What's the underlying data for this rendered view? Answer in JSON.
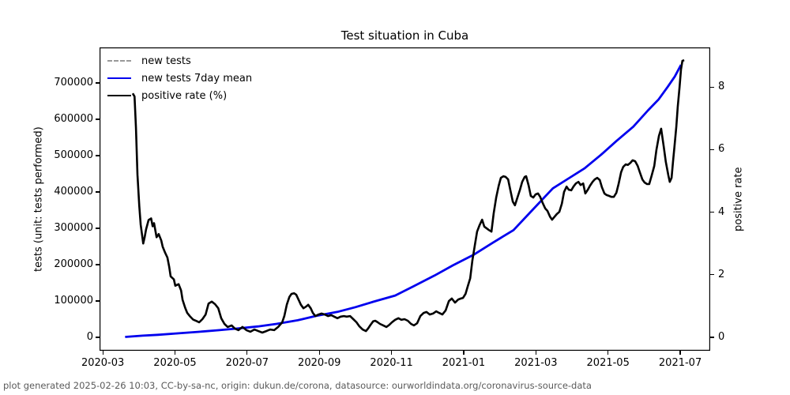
{
  "chart_data": {
    "type": "line",
    "title": "Test situation in Cuba",
    "footer": "plot generated 2025-02-26 10:03, CC-by-sa-nc, origin: dukun.de/corona, datasource: ourworldindata.org/coronavirus-source-data",
    "legend_position": "upper-left",
    "grid": false,
    "axes": {
      "x": {
        "unit": "months since 2020-03",
        "min": -0.09,
        "max": 16.83,
        "ticks": [
          {
            "t": 0,
            "label": "2020-03"
          },
          {
            "t": 2,
            "label": "2020-05"
          },
          {
            "t": 4,
            "label": "2020-07"
          },
          {
            "t": 6,
            "label": "2020-09"
          },
          {
            "t": 8,
            "label": "2020-11"
          },
          {
            "t": 10,
            "label": "2021-01"
          },
          {
            "t": 12,
            "label": "2021-03"
          },
          {
            "t": 14,
            "label": "2021-05"
          },
          {
            "t": 16,
            "label": "2021-07"
          }
        ]
      },
      "y_left": {
        "label": "tests (unit: tests performed)",
        "min": -37000,
        "max": 798000,
        "ticks": [
          0,
          100000,
          200000,
          300000,
          400000,
          500000,
          600000,
          700000
        ]
      },
      "y_right": {
        "label": "positive rate",
        "min": -0.43,
        "max": 9.27,
        "ticks": [
          0,
          2,
          4,
          6,
          8
        ]
      }
    },
    "tests_curve": [
      [
        0.62,
        1000
      ],
      [
        1.1,
        4500
      ],
      [
        1.53,
        7000
      ],
      [
        2.1,
        11000
      ],
      [
        2.63,
        15000
      ],
      [
        3.2,
        19500
      ],
      [
        3.72,
        24000
      ],
      [
        4.3,
        30000
      ],
      [
        4.81,
        37000
      ],
      [
        5.4,
        47000
      ],
      [
        5.91,
        59000
      ],
      [
        6.5,
        70000
      ],
      [
        7.0,
        83000
      ],
      [
        7.5,
        98000
      ],
      [
        8.1,
        115000
      ],
      [
        8.6,
        140000
      ],
      [
        9.19,
        170000
      ],
      [
        9.7,
        198000
      ],
      [
        10.29,
        228000
      ],
      [
        10.8,
        260000
      ],
      [
        11.38,
        295000
      ],
      [
        11.9,
        350000
      ],
      [
        12.47,
        410000
      ],
      [
        12.9,
        437000
      ],
      [
        13.35,
        465000
      ],
      [
        13.8,
        502000
      ],
      [
        14.23,
        540000
      ],
      [
        14.7,
        580000
      ],
      [
        15.1,
        624000
      ],
      [
        15.4,
        655000
      ],
      [
        15.65,
        689000
      ],
      [
        15.85,
        718000
      ],
      [
        16.02,
        750000
      ]
    ],
    "positive_rate_curve": [
      [
        0.83,
        7.8
      ],
      [
        0.88,
        7.7
      ],
      [
        0.92,
        6.7
      ],
      [
        0.96,
        5.2
      ],
      [
        1.01,
        4.2
      ],
      [
        1.05,
        3.6
      ],
      [
        1.12,
        3.0
      ],
      [
        1.16,
        3.2
      ],
      [
        1.2,
        3.45
      ],
      [
        1.27,
        3.75
      ],
      [
        1.34,
        3.8
      ],
      [
        1.38,
        3.55
      ],
      [
        1.42,
        3.65
      ],
      [
        1.49,
        3.2
      ],
      [
        1.55,
        3.3
      ],
      [
        1.62,
        3.1
      ],
      [
        1.66,
        2.9
      ],
      [
        1.73,
        2.7
      ],
      [
        1.79,
        2.55
      ],
      [
        1.84,
        2.25
      ],
      [
        1.88,
        1.95
      ],
      [
        1.97,
        1.85
      ],
      [
        2.01,
        1.65
      ],
      [
        2.1,
        1.7
      ],
      [
        2.17,
        1.5
      ],
      [
        2.21,
        1.2
      ],
      [
        2.28,
        0.95
      ],
      [
        2.34,
        0.78
      ],
      [
        2.41,
        0.68
      ],
      [
        2.5,
        0.57
      ],
      [
        2.6,
        0.52
      ],
      [
        2.67,
        0.48
      ],
      [
        2.76,
        0.58
      ],
      [
        2.85,
        0.73
      ],
      [
        2.93,
        1.08
      ],
      [
        3.02,
        1.14
      ],
      [
        3.11,
        1.06
      ],
      [
        3.2,
        0.93
      ],
      [
        3.28,
        0.61
      ],
      [
        3.37,
        0.43
      ],
      [
        3.46,
        0.33
      ],
      [
        3.57,
        0.38
      ],
      [
        3.66,
        0.28
      ],
      [
        3.76,
        0.23
      ],
      [
        3.87,
        0.33
      ],
      [
        3.98,
        0.23
      ],
      [
        4.09,
        0.18
      ],
      [
        4.2,
        0.25
      ],
      [
        4.31,
        0.2
      ],
      [
        4.42,
        0.15
      ],
      [
        4.53,
        0.2
      ],
      [
        4.64,
        0.25
      ],
      [
        4.75,
        0.23
      ],
      [
        4.86,
        0.33
      ],
      [
        4.97,
        0.48
      ],
      [
        5.03,
        0.68
      ],
      [
        5.1,
        1.05
      ],
      [
        5.17,
        1.29
      ],
      [
        5.23,
        1.39
      ],
      [
        5.3,
        1.41
      ],
      [
        5.36,
        1.36
      ],
      [
        5.43,
        1.19
      ],
      [
        5.49,
        1.04
      ],
      [
        5.56,
        0.93
      ],
      [
        5.63,
        0.98
      ],
      [
        5.69,
        1.04
      ],
      [
        5.76,
        0.93
      ],
      [
        5.82,
        0.78
      ],
      [
        5.89,
        0.68
      ],
      [
        5.98,
        0.73
      ],
      [
        6.06,
        0.76
      ],
      [
        6.15,
        0.73
      ],
      [
        6.24,
        0.68
      ],
      [
        6.33,
        0.71
      ],
      [
        6.41,
        0.66
      ],
      [
        6.5,
        0.61
      ],
      [
        6.59,
        0.66
      ],
      [
        6.68,
        0.68
      ],
      [
        6.76,
        0.66
      ],
      [
        6.85,
        0.68
      ],
      [
        6.94,
        0.58
      ],
      [
        7.03,
        0.48
      ],
      [
        7.11,
        0.35
      ],
      [
        7.2,
        0.25
      ],
      [
        7.29,
        0.2
      ],
      [
        7.35,
        0.28
      ],
      [
        7.42,
        0.4
      ],
      [
        7.49,
        0.51
      ],
      [
        7.55,
        0.53
      ],
      [
        7.62,
        0.48
      ],
      [
        7.68,
        0.43
      ],
      [
        7.77,
        0.38
      ],
      [
        7.86,
        0.33
      ],
      [
        7.94,
        0.4
      ],
      [
        8.01,
        0.48
      ],
      [
        8.1,
        0.56
      ],
      [
        8.19,
        0.61
      ],
      [
        8.27,
        0.56
      ],
      [
        8.36,
        0.58
      ],
      [
        8.45,
        0.53
      ],
      [
        8.54,
        0.43
      ],
      [
        8.62,
        0.38
      ],
      [
        8.71,
        0.45
      ],
      [
        8.8,
        0.68
      ],
      [
        8.89,
        0.78
      ],
      [
        8.97,
        0.81
      ],
      [
        9.06,
        0.73
      ],
      [
        9.15,
        0.76
      ],
      [
        9.24,
        0.83
      ],
      [
        9.32,
        0.78
      ],
      [
        9.41,
        0.73
      ],
      [
        9.5,
        0.86
      ],
      [
        9.59,
        1.16
      ],
      [
        9.67,
        1.24
      ],
      [
        9.76,
        1.11
      ],
      [
        9.85,
        1.21
      ],
      [
        9.92,
        1.24
      ],
      [
        9.98,
        1.26
      ],
      [
        10.05,
        1.39
      ],
      [
        10.11,
        1.62
      ],
      [
        10.18,
        1.89
      ],
      [
        10.24,
        2.45
      ],
      [
        10.31,
        2.95
      ],
      [
        10.37,
        3.38
      ],
      [
        10.44,
        3.59
      ],
      [
        10.51,
        3.76
      ],
      [
        10.57,
        3.54
      ],
      [
        10.64,
        3.48
      ],
      [
        10.7,
        3.43
      ],
      [
        10.77,
        3.38
      ],
      [
        10.83,
        3.96
      ],
      [
        10.9,
        4.47
      ],
      [
        10.97,
        4.85
      ],
      [
        11.03,
        5.1
      ],
      [
        11.1,
        5.15
      ],
      [
        11.16,
        5.13
      ],
      [
        11.23,
        5.05
      ],
      [
        11.29,
        4.72
      ],
      [
        11.36,
        4.34
      ],
      [
        11.42,
        4.22
      ],
      [
        11.49,
        4.47
      ],
      [
        11.56,
        4.72
      ],
      [
        11.62,
        4.97
      ],
      [
        11.69,
        5.13
      ],
      [
        11.73,
        5.15
      ],
      [
        11.8,
        4.85
      ],
      [
        11.86,
        4.52
      ],
      [
        11.93,
        4.47
      ],
      [
        11.99,
        4.57
      ],
      [
        12.06,
        4.6
      ],
      [
        12.12,
        4.49
      ],
      [
        12.19,
        4.29
      ],
      [
        12.26,
        4.12
      ],
      [
        12.32,
        4.04
      ],
      [
        12.39,
        3.86
      ],
      [
        12.45,
        3.76
      ],
      [
        12.52,
        3.86
      ],
      [
        12.58,
        3.94
      ],
      [
        12.65,
        4.01
      ],
      [
        12.72,
        4.27
      ],
      [
        12.78,
        4.65
      ],
      [
        12.85,
        4.82
      ],
      [
        12.91,
        4.72
      ],
      [
        12.98,
        4.7
      ],
      [
        13.04,
        4.82
      ],
      [
        13.11,
        4.92
      ],
      [
        13.18,
        4.97
      ],
      [
        13.24,
        4.87
      ],
      [
        13.31,
        4.92
      ],
      [
        13.37,
        4.6
      ],
      [
        13.44,
        4.72
      ],
      [
        13.5,
        4.85
      ],
      [
        13.57,
        4.97
      ],
      [
        13.63,
        5.05
      ],
      [
        13.7,
        5.1
      ],
      [
        13.77,
        5.03
      ],
      [
        13.83,
        4.8
      ],
      [
        13.9,
        4.6
      ],
      [
        13.96,
        4.55
      ],
      [
        14.03,
        4.52
      ],
      [
        14.09,
        4.49
      ],
      [
        14.16,
        4.49
      ],
      [
        14.23,
        4.62
      ],
      [
        14.29,
        4.9
      ],
      [
        14.36,
        5.28
      ],
      [
        14.42,
        5.45
      ],
      [
        14.49,
        5.53
      ],
      [
        14.55,
        5.51
      ],
      [
        14.62,
        5.58
      ],
      [
        14.68,
        5.66
      ],
      [
        14.75,
        5.63
      ],
      [
        14.82,
        5.48
      ],
      [
        14.88,
        5.28
      ],
      [
        14.95,
        5.05
      ],
      [
        15.01,
        4.95
      ],
      [
        15.08,
        4.9
      ],
      [
        15.14,
        4.9
      ],
      [
        15.21,
        5.18
      ],
      [
        15.28,
        5.48
      ],
      [
        15.34,
        5.99
      ],
      [
        15.41,
        6.44
      ],
      [
        15.47,
        6.67
      ],
      [
        15.54,
        6.11
      ],
      [
        15.6,
        5.61
      ],
      [
        15.67,
        5.18
      ],
      [
        15.71,
        4.97
      ],
      [
        15.76,
        5.1
      ],
      [
        15.8,
        5.61
      ],
      [
        15.84,
        6.11
      ],
      [
        15.89,
        6.74
      ],
      [
        15.93,
        7.37
      ],
      [
        15.98,
        8.0
      ],
      [
        16.02,
        8.56
      ],
      [
        16.06,
        8.84
      ],
      [
        16.11,
        8.86
      ]
    ],
    "series": [
      {
        "name": "new tests",
        "axis": "left",
        "color": "#999999",
        "width": 2.2,
        "dash": "8 5",
        "points_ref": "tests_curve"
      },
      {
        "name": "new tests 7day mean",
        "axis": "left",
        "color": "#0000ee",
        "width": 2.8,
        "dash": null,
        "points_ref": "tests_curve"
      },
      {
        "name": "positive rate (%)",
        "axis": "right",
        "color": "#000000",
        "width": 2.6,
        "dash": null,
        "points_ref": "positive_rate_curve"
      }
    ]
  }
}
